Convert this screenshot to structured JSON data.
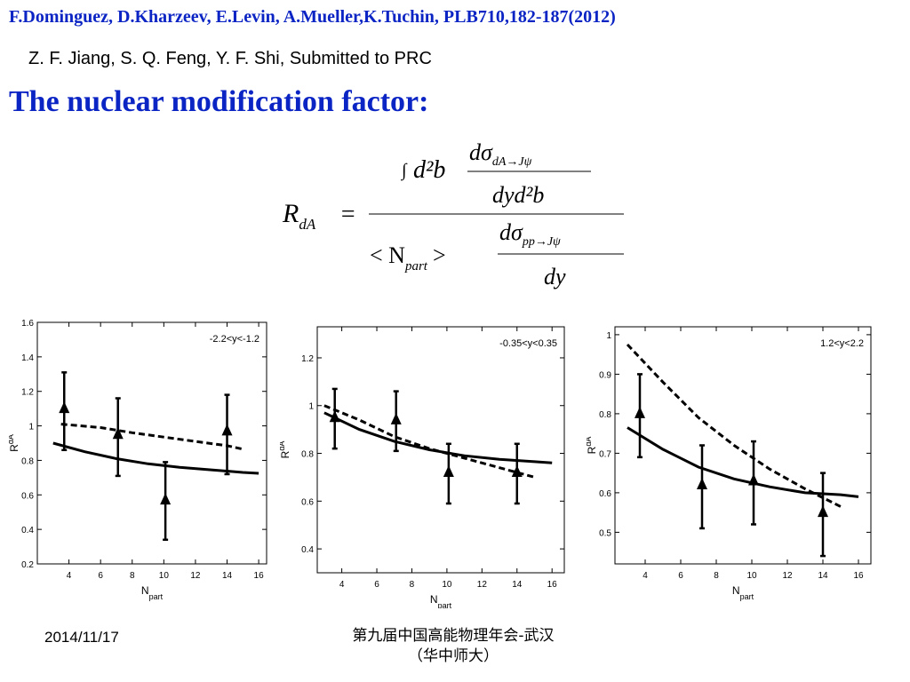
{
  "header": {
    "reference_1": "F.Dominguez, D.Kharzeev, E.Levin, A.Mueller,K.Tuchin, PLB710,182-187(2012)",
    "reference_2": "Z. F. Jiang,  S. Q. Feng, Y. F. Shi, Submitted to PRC",
    "title": "The  nuclear modification factor:"
  },
  "formula": {
    "lhs_main": "R",
    "lhs_sub": "dA",
    "equals": "=",
    "integral": "∫",
    "d2b": "d²b",
    "num_d_sigma": "dσ",
    "num_sub": "dA→Jψ",
    "num_den": "dyd²b",
    "npart_left": "< N",
    "npart_sub": "part",
    "npart_right": ">",
    "den_d_sigma": "dσ",
    "den_sub": "pp→Jψ",
    "den_den": "dy"
  },
  "chart_data": [
    {
      "type": "line",
      "annotation": "-2.2<y<-1.2",
      "xlabel": "N",
      "xlabel_sub": "part",
      "ylabel": "R",
      "ylabel_sub": "dA",
      "xlim": [
        2,
        16.5
      ],
      "ylim": [
        0.2,
        1.6
      ],
      "xticks": [
        4,
        6,
        8,
        10,
        12,
        14,
        16
      ],
      "yticks": [
        0.2,
        0.4,
        0.6,
        0.8,
        1,
        1.2,
        1.4,
        1.6
      ],
      "ytick_labels": [
        "0.2",
        "0.4",
        "0.6",
        "0.8",
        "1",
        "1.2",
        "1.4",
        "1.6"
      ],
      "solid": {
        "x": [
          3,
          5,
          7,
          9,
          11,
          13,
          15,
          16
        ],
        "y": [
          0.9,
          0.85,
          0.81,
          0.78,
          0.76,
          0.745,
          0.73,
          0.725
        ]
      },
      "dashed": {
        "x": [
          3.5,
          6,
          8,
          10,
          12,
          14,
          15
        ],
        "y": [
          1.01,
          0.99,
          0.96,
          0.935,
          0.91,
          0.885,
          0.865
        ]
      },
      "points": [
        {
          "x": 3.7,
          "y": 1.1,
          "lo": 0.86,
          "hi": 1.31
        },
        {
          "x": 7.1,
          "y": 0.95,
          "lo": 0.71,
          "hi": 1.16
        },
        {
          "x": 10.1,
          "y": 0.57,
          "lo": 0.34,
          "hi": 0.79
        },
        {
          "x": 14,
          "y": 0.97,
          "lo": 0.72,
          "hi": 1.18
        }
      ]
    },
    {
      "type": "line",
      "annotation": "-0.35<y<0.35",
      "xlabel": "N",
      "xlabel_sub": "part",
      "ylabel": "R",
      "ylabel_sub": "dA",
      "xlim": [
        2.6,
        16.7
      ],
      "ylim": [
        0.3,
        1.33
      ],
      "xticks": [
        4,
        6,
        8,
        10,
        12,
        14,
        16
      ],
      "yticks": [
        0.4,
        0.6,
        0.8,
        1,
        1.2
      ],
      "ytick_labels": [
        "0.4",
        "0.6",
        "0.8",
        "1",
        "1.2"
      ],
      "solid": {
        "x": [
          3,
          5,
          7,
          9,
          11,
          13,
          15,
          16
        ],
        "y": [
          0.97,
          0.9,
          0.85,
          0.815,
          0.79,
          0.775,
          0.765,
          0.76
        ]
      },
      "dashed": {
        "x": [
          3,
          5,
          7,
          9,
          11,
          13,
          15
        ],
        "y": [
          1.0,
          0.94,
          0.87,
          0.82,
          0.78,
          0.74,
          0.7
        ]
      },
      "points": [
        {
          "x": 3.6,
          "y": 0.95,
          "lo": 0.82,
          "hi": 1.07
        },
        {
          "x": 7.1,
          "y": 0.94,
          "lo": 0.81,
          "hi": 1.06
        },
        {
          "x": 10.1,
          "y": 0.72,
          "lo": 0.59,
          "hi": 0.84
        },
        {
          "x": 14,
          "y": 0.72,
          "lo": 0.59,
          "hi": 0.84
        }
      ]
    },
    {
      "type": "line",
      "annotation": "1.2<y<2.2",
      "xlabel": "N",
      "xlabel_sub": "part",
      "ylabel": "R",
      "ylabel_sub": "dA",
      "xlim": [
        2.3,
        16.7
      ],
      "ylim": [
        0.42,
        1.02
      ],
      "xticks": [
        4,
        6,
        8,
        10,
        12,
        14,
        16
      ],
      "yticks": [
        0.5,
        0.6,
        0.7,
        0.8,
        0.9,
        1
      ],
      "ytick_labels": [
        "0.5",
        "0.6",
        "0.7",
        "0.8",
        "0.9",
        "1"
      ],
      "solid": {
        "x": [
          3,
          5,
          7,
          9,
          11,
          13,
          15,
          16
        ],
        "y": [
          0.765,
          0.71,
          0.665,
          0.635,
          0.615,
          0.6,
          0.595,
          0.59
        ]
      },
      "dashed": {
        "x": [
          3,
          5,
          7,
          9,
          11,
          13,
          15
        ],
        "y": [
          0.975,
          0.88,
          0.79,
          0.72,
          0.66,
          0.61,
          0.565
        ]
      },
      "points": [
        {
          "x": 3.7,
          "y": 0.8,
          "lo": 0.69,
          "hi": 0.9
        },
        {
          "x": 7.2,
          "y": 0.62,
          "lo": 0.51,
          "hi": 0.72
        },
        {
          "x": 10.1,
          "y": 0.63,
          "lo": 0.52,
          "hi": 0.73
        },
        {
          "x": 14,
          "y": 0.55,
          "lo": 0.44,
          "hi": 0.65
        }
      ]
    }
  ],
  "footer": {
    "date": "2014/11/17",
    "venue_line1": "第九届中国高能物理年会-武汉",
    "venue_line2": "（华中师大）"
  }
}
